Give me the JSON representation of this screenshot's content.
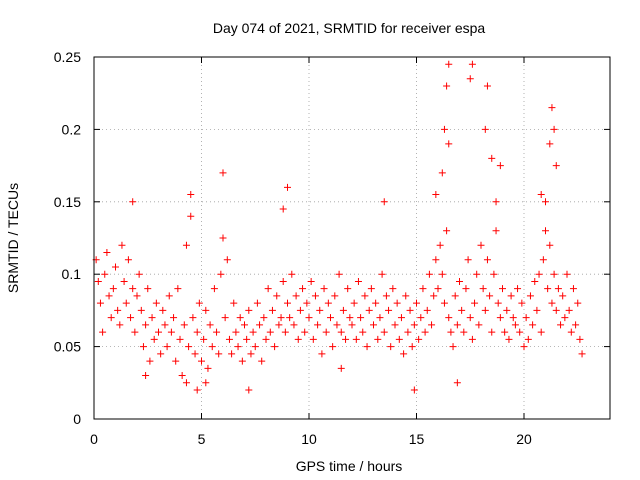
{
  "chart_data": {
    "type": "scatter",
    "title": "Day 074 of 2021, SRMTID for receiver espa",
    "xlabel": "GPS time / hours",
    "ylabel": "SRMTID / TECUs",
    "xlim": [
      0,
      24
    ],
    "ylim": [
      0,
      0.25
    ],
    "xticks": [
      0,
      5,
      10,
      15,
      20
    ],
    "yticks": [
      0,
      0.05,
      0.1,
      0.15,
      0.2,
      0.25
    ],
    "xtick_labels": [
      "0",
      "5",
      "10",
      "15",
      "20"
    ],
    "ytick_labels": [
      "0",
      "0.05",
      "0.1",
      "0.15",
      "0.2",
      "0.25"
    ],
    "grid": true,
    "marker": "+",
    "color": "#ff0000",
    "series": [
      {
        "name": "SRMTID",
        "points": [
          [
            0.1,
            0.11
          ],
          [
            0.2,
            0.095
          ],
          [
            0.3,
            0.08
          ],
          [
            0.4,
            0.06
          ],
          [
            0.5,
            0.1
          ],
          [
            0.6,
            0.115
          ],
          [
            0.7,
            0.085
          ],
          [
            0.8,
            0.07
          ],
          [
            0.9,
            0.09
          ],
          [
            1.0,
            0.105
          ],
          [
            1.1,
            0.075
          ],
          [
            1.2,
            0.065
          ],
          [
            1.3,
            0.12
          ],
          [
            1.4,
            0.095
          ],
          [
            1.5,
            0.08
          ],
          [
            1.6,
            0.11
          ],
          [
            1.7,
            0.07
          ],
          [
            1.8,
            0.09
          ],
          [
            1.9,
            0.06
          ],
          [
            2.0,
            0.085
          ],
          [
            2.1,
            0.1
          ],
          [
            2.2,
            0.075
          ],
          [
            2.3,
            0.05
          ],
          [
            2.4,
            0.065
          ],
          [
            2.5,
            0.09
          ],
          [
            2.6,
            0.04
          ],
          [
            2.7,
            0.07
          ],
          [
            2.8,
            0.055
          ],
          [
            2.9,
            0.08
          ],
          [
            3.0,
            0.06
          ],
          [
            3.1,
            0.045
          ],
          [
            3.2,
            0.075
          ],
          [
            3.3,
            0.065
          ],
          [
            3.4,
            0.05
          ],
          [
            3.5,
            0.085
          ],
          [
            3.6,
            0.06
          ],
          [
            3.7,
            0.07
          ],
          [
            3.8,
            0.04
          ],
          [
            3.9,
            0.09
          ],
          [
            4.0,
            0.055
          ],
          [
            4.1,
            0.03
          ],
          [
            4.2,
            0.065
          ],
          [
            4.3,
            0.12
          ],
          [
            4.4,
            0.05
          ],
          [
            4.5,
            0.14
          ],
          [
            4.6,
            0.07
          ],
          [
            4.7,
            0.045
          ],
          [
            4.8,
            0.06
          ],
          [
            4.9,
            0.08
          ],
          [
            5.0,
            0.04
          ],
          [
            5.1,
            0.055
          ],
          [
            5.2,
            0.075
          ],
          [
            5.3,
            0.035
          ],
          [
            5.4,
            0.065
          ],
          [
            5.5,
            0.05
          ],
          [
            5.6,
            0.09
          ],
          [
            5.7,
            0.06
          ],
          [
            5.8,
            0.045
          ],
          [
            5.9,
            0.1
          ],
          [
            6.0,
            0.125
          ],
          [
            6.1,
            0.07
          ],
          [
            6.2,
            0.11
          ],
          [
            6.3,
            0.055
          ],
          [
            6.4,
            0.045
          ],
          [
            6.5,
            0.08
          ],
          [
            6.6,
            0.06
          ],
          [
            6.7,
            0.05
          ],
          [
            6.8,
            0.07
          ],
          [
            6.9,
            0.04
          ],
          [
            7.0,
            0.065
          ],
          [
            7.1,
            0.055
          ],
          [
            7.2,
            0.075
          ],
          [
            7.3,
            0.045
          ],
          [
            7.4,
            0.06
          ],
          [
            7.5,
            0.05
          ],
          [
            7.6,
            0.08
          ],
          [
            7.7,
            0.065
          ],
          [
            7.8,
            0.04
          ],
          [
            7.9,
            0.07
          ],
          [
            8.0,
            0.055
          ],
          [
            8.1,
            0.09
          ],
          [
            8.2,
            0.06
          ],
          [
            8.3,
            0.075
          ],
          [
            8.4,
            0.05
          ],
          [
            8.5,
            0.085
          ],
          [
            8.6,
            0.065
          ],
          [
            8.7,
            0.07
          ],
          [
            8.8,
            0.095
          ],
          [
            8.9,
            0.06
          ],
          [
            9.0,
            0.08
          ],
          [
            9.1,
            0.07
          ],
          [
            9.2,
            0.1
          ],
          [
            9.3,
            0.065
          ],
          [
            9.4,
            0.085
          ],
          [
            9.5,
            0.055
          ],
          [
            9.6,
            0.075
          ],
          [
            9.7,
            0.09
          ],
          [
            9.8,
            0.06
          ],
          [
            9.9,
            0.08
          ],
          [
            10.0,
            0.07
          ],
          [
            10.1,
            0.095
          ],
          [
            10.2,
            0.055
          ],
          [
            10.3,
            0.085
          ],
          [
            10.4,
            0.065
          ],
          [
            10.5,
            0.075
          ],
          [
            10.6,
            0.045
          ],
          [
            10.7,
            0.09
          ],
          [
            10.8,
            0.06
          ],
          [
            10.9,
            0.08
          ],
          [
            11.0,
            0.07
          ],
          [
            11.1,
            0.05
          ],
          [
            11.2,
            0.085
          ],
          [
            11.3,
            0.065
          ],
          [
            11.4,
            0.1
          ],
          [
            11.5,
            0.06
          ],
          [
            11.6,
            0.075
          ],
          [
            11.7,
            0.055
          ],
          [
            11.8,
            0.09
          ],
          [
            11.9,
            0.07
          ],
          [
            12.0,
            0.065
          ],
          [
            12.1,
            0.08
          ],
          [
            12.2,
            0.055
          ],
          [
            12.3,
            0.095
          ],
          [
            12.4,
            0.07
          ],
          [
            12.5,
            0.06
          ],
          [
            12.6,
            0.085
          ],
          [
            12.7,
            0.05
          ],
          [
            12.8,
            0.075
          ],
          [
            12.9,
            0.09
          ],
          [
            13.0,
            0.065
          ],
          [
            13.1,
            0.08
          ],
          [
            13.2,
            0.055
          ],
          [
            13.3,
            0.07
          ],
          [
            13.4,
            0.1
          ],
          [
            13.5,
            0.06
          ],
          [
            13.6,
            0.085
          ],
          [
            13.7,
            0.075
          ],
          [
            13.8,
            0.05
          ],
          [
            13.9,
            0.09
          ],
          [
            14.0,
            0.065
          ],
          [
            14.1,
            0.08
          ],
          [
            14.2,
            0.055
          ],
          [
            14.3,
            0.07
          ],
          [
            14.4,
            0.045
          ],
          [
            14.5,
            0.085
          ],
          [
            14.6,
            0.06
          ],
          [
            14.7,
            0.075
          ],
          [
            14.8,
            0.05
          ],
          [
            14.9,
            0.065
          ],
          [
            15.0,
            0.08
          ],
          [
            15.1,
            0.055
          ],
          [
            15.2,
            0.07
          ],
          [
            15.3,
            0.09
          ],
          [
            15.4,
            0.06
          ],
          [
            15.5,
            0.075
          ],
          [
            15.6,
            0.1
          ],
          [
            15.7,
            0.065
          ],
          [
            15.8,
            0.085
          ],
          [
            15.9,
            0.11
          ],
          [
            16.0,
            0.09
          ],
          [
            16.1,
            0.12
          ],
          [
            16.2,
            0.1
          ],
          [
            16.3,
            0.08
          ],
          [
            16.4,
            0.13
          ],
          [
            16.5,
            0.07
          ],
          [
            16.6,
            0.06
          ],
          [
            16.7,
            0.05
          ],
          [
            16.8,
            0.085
          ],
          [
            16.9,
            0.065
          ],
          [
            17.0,
            0.095
          ],
          [
            17.1,
            0.075
          ],
          [
            17.2,
            0.06
          ],
          [
            17.3,
            0.09
          ],
          [
            17.4,
            0.11
          ],
          [
            17.5,
            0.07
          ],
          [
            17.6,
            0.055
          ],
          [
            17.7,
            0.08
          ],
          [
            17.8,
            0.1
          ],
          [
            17.9,
            0.065
          ],
          [
            18.0,
            0.12
          ],
          [
            18.1,
            0.09
          ],
          [
            18.2,
            0.075
          ],
          [
            18.3,
            0.11
          ],
          [
            18.4,
            0.085
          ],
          [
            18.5,
            0.06
          ],
          [
            18.6,
            0.1
          ],
          [
            18.7,
            0.13
          ],
          [
            18.8,
            0.08
          ],
          [
            18.9,
            0.07
          ],
          [
            19.0,
            0.09
          ],
          [
            19.1,
            0.06
          ],
          [
            19.2,
            0.075
          ],
          [
            19.3,
            0.055
          ],
          [
            19.4,
            0.085
          ],
          [
            19.5,
            0.07
          ],
          [
            19.6,
            0.065
          ],
          [
            19.7,
            0.09
          ],
          [
            19.8,
            0.06
          ],
          [
            19.9,
            0.08
          ],
          [
            20.0,
            0.05
          ],
          [
            20.1,
            0.07
          ],
          [
            20.2,
            0.055
          ],
          [
            20.3,
            0.085
          ],
          [
            20.4,
            0.065
          ],
          [
            20.5,
            0.095
          ],
          [
            20.6,
            0.075
          ],
          [
            20.7,
            0.1
          ],
          [
            20.8,
            0.06
          ],
          [
            20.9,
            0.11
          ],
          [
            21.0,
            0.13
          ],
          [
            21.1,
            0.09
          ],
          [
            21.2,
            0.12
          ],
          [
            21.3,
            0.08
          ],
          [
            21.4,
            0.1
          ],
          [
            21.5,
            0.075
          ],
          [
            21.6,
            0.09
          ],
          [
            21.7,
            0.065
          ],
          [
            21.8,
            0.085
          ],
          [
            21.9,
            0.07
          ],
          [
            22.0,
            0.1
          ],
          [
            22.1,
            0.075
          ],
          [
            22.2,
            0.06
          ],
          [
            22.3,
            0.09
          ],
          [
            22.4,
            0.065
          ],
          [
            22.5,
            0.08
          ],
          [
            22.6,
            0.055
          ],
          [
            22.7,
            0.045
          ],
          [
            16.2,
            0.17
          ],
          [
            16.3,
            0.2
          ],
          [
            16.4,
            0.23
          ],
          [
            16.5,
            0.19
          ],
          [
            18.2,
            0.2
          ],
          [
            18.3,
            0.23
          ],
          [
            18.5,
            0.18
          ],
          [
            18.7,
            0.15
          ],
          [
            18.9,
            0.175
          ],
          [
            20.8,
            0.155
          ],
          [
            21.0,
            0.15
          ],
          [
            21.2,
            0.19
          ],
          [
            21.3,
            0.215
          ],
          [
            21.4,
            0.2
          ],
          [
            21.5,
            0.175
          ],
          [
            16.5,
            0.245
          ],
          [
            17.5,
            0.235
          ],
          [
            17.6,
            0.245
          ],
          [
            6.0,
            0.17
          ],
          [
            9.0,
            0.16
          ],
          [
            4.5,
            0.155
          ],
          [
            1.8,
            0.15
          ],
          [
            13.5,
            0.15
          ],
          [
            15.9,
            0.155
          ],
          [
            8.8,
            0.145
          ],
          [
            4.8,
            0.02
          ],
          [
            7.2,
            0.02
          ],
          [
            14.9,
            0.02
          ],
          [
            4.3,
            0.025
          ],
          [
            16.9,
            0.025
          ],
          [
            5.2,
            0.025
          ],
          [
            2.4,
            0.03
          ],
          [
            11.5,
            0.035
          ]
        ]
      }
    ]
  }
}
